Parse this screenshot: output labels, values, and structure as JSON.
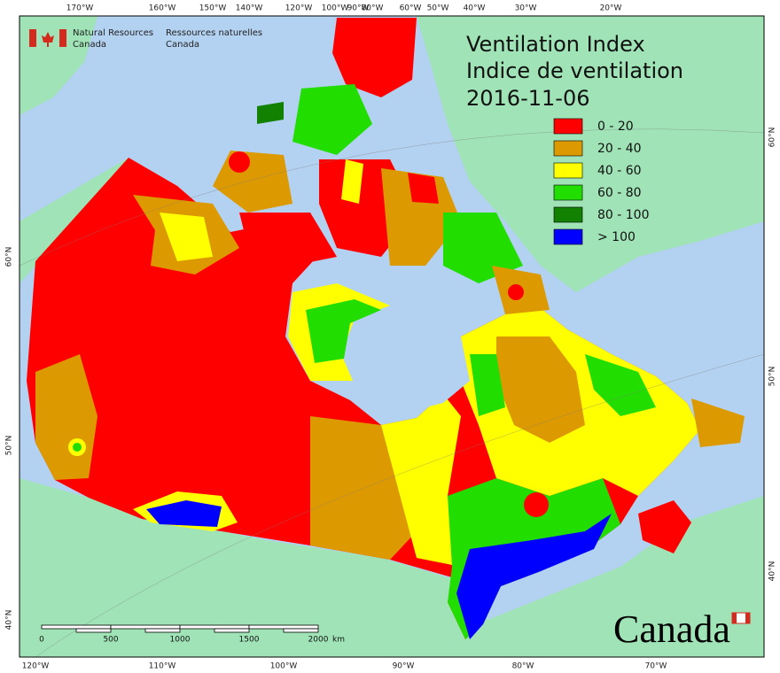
{
  "agency": {
    "en_line1": "Natural Resources",
    "en_line2": "Canada",
    "fr_line1": "Ressources naturelles",
    "fr_line2": "Canada"
  },
  "title": {
    "line1": "Ventilation Index",
    "line2": "Indice de ventilation",
    "date": "2016-11-06"
  },
  "legend": [
    {
      "label": "0 - 20",
      "color": "#ff0000"
    },
    {
      "label": "20 - 40",
      "color": "#dd9a00"
    },
    {
      "label": "40 - 60",
      "color": "#ffff00"
    },
    {
      "label": "60 - 80",
      "color": "#22dd00"
    },
    {
      "label": "80 - 100",
      "color": "#128000"
    },
    {
      "label": "> 100",
      "color": "#0000ff"
    }
  ],
  "graticule": {
    "top": [
      "170°W",
      "160°W",
      "150°W",
      "140°W",
      "120°W",
      "100°W",
      "90°W",
      "80°W",
      "60°W",
      "50°W",
      "40°W",
      "30°W",
      "20°W"
    ],
    "bottom": [
      "120°W",
      "110°W",
      "100°W",
      "90°W",
      "80°W",
      "70°W"
    ],
    "left": [
      "60°N",
      "50°N",
      "40°N"
    ],
    "right": [
      "60°N",
      "50°N",
      "40°N"
    ]
  },
  "scale_bar": {
    "labels": [
      "0",
      "500",
      "1000",
      "1500",
      "2000"
    ],
    "unit": "km"
  },
  "wordmark": "Canada"
}
